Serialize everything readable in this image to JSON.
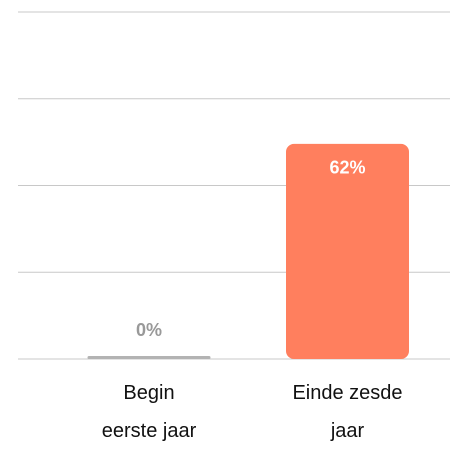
{
  "chart_data": {
    "type": "bar",
    "categories": [
      "Begin eerste jaar",
      "Einde zesde jaar"
    ],
    "values": [
      0,
      62
    ],
    "value_labels": [
      "0%",
      "62%"
    ],
    "colors": [
      "#b3b3b3",
      "#ff7f5e"
    ],
    "ylim": [
      0,
      100
    ],
    "yticks": [
      0,
      25,
      50,
      75,
      100
    ],
    "grid": true
  }
}
